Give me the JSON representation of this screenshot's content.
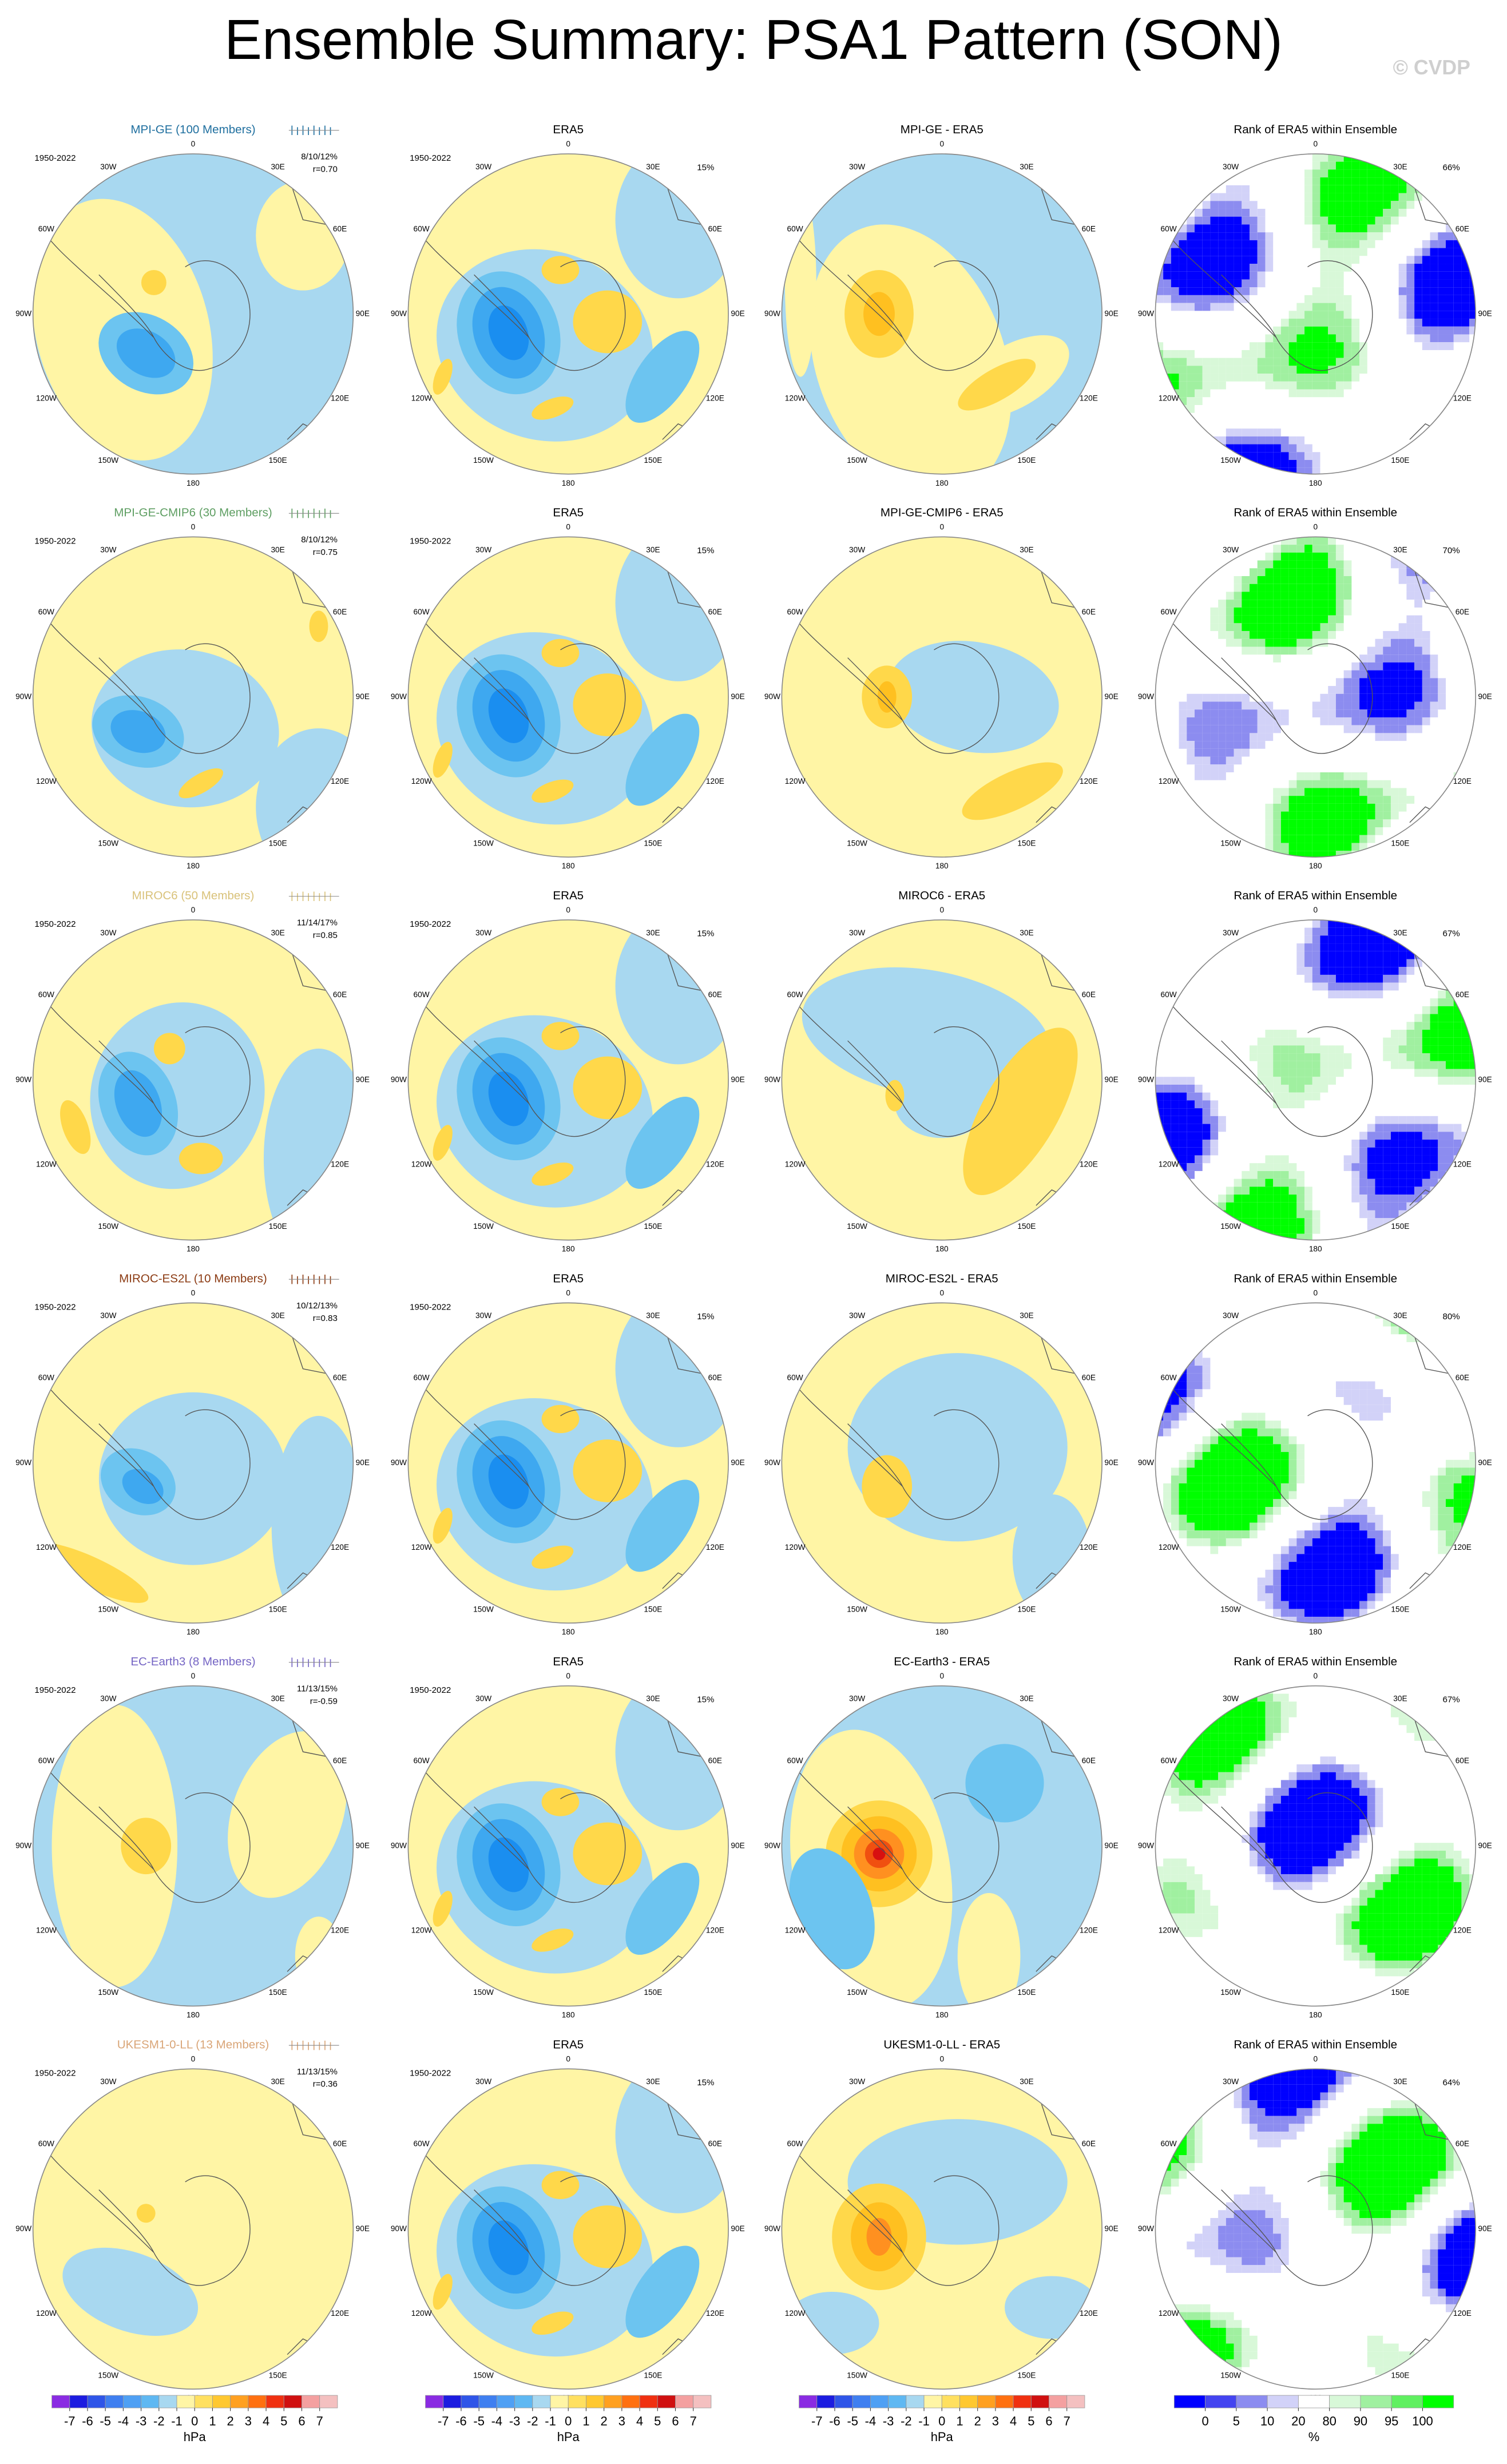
{
  "title": "Ensemble Summary: PSA1 Pattern (SON)",
  "watermark": "© CVDP",
  "period": "1950-2022",
  "era_title": "ERA5",
  "era_pct": "15%",
  "rank_title": "Rank of ERA5 within Ensemble",
  "lon_labels": [
    "0",
    "30E",
    "60E",
    "90E",
    "120E",
    "150E",
    "180",
    "150W",
    "120W",
    "90W",
    "60W",
    "30W"
  ],
  "rows": [
    {
      "model_title": "MPI-GE (100 Members)",
      "model_color": "#1f6f9f",
      "stats": [
        "8/10/12%",
        "r=0.70"
      ],
      "diff_title": "MPI-GE - ERA5",
      "rank_pct": "66%"
    },
    {
      "model_title": "MPI-GE-CMIP6 (30 Members)",
      "model_color": "#5e9e62",
      "stats": [
        "8/10/12%",
        "r=0.75"
      ],
      "diff_title": "MPI-GE-CMIP6 - ERA5",
      "rank_pct": "70%"
    },
    {
      "model_title": "MIROC6 (50 Members)",
      "model_color": "#d9c27a",
      "stats": [
        "11/14/17%",
        "r=0.85"
      ],
      "diff_title": "MIROC6 - ERA5",
      "rank_pct": "67%"
    },
    {
      "model_title": "MIROC-ES2L (10 Members)",
      "model_color": "#8b3a12",
      "stats": [
        "10/12/13%",
        "r=0.83"
      ],
      "diff_title": "MIROC-ES2L - ERA5",
      "rank_pct": "80%"
    },
    {
      "model_title": "EC-Earth3 (8 Members)",
      "model_color": "#7565c4",
      "stats": [
        "11/13/15%",
        "r=-0.59"
      ],
      "diff_title": "EC-Earth3 - ERA5",
      "rank_pct": "67%"
    },
    {
      "model_title": "UKESM1-0-LL (13 Members)",
      "model_color": "#d9a577",
      "stats": [
        "11/13/15%",
        "r=0.36"
      ],
      "diff_title": "UKESM1-0-LL - ERA5",
      "rank_pct": "64%"
    }
  ],
  "colorbar": {
    "ticks": [
      -7,
      -6,
      -5,
      -4,
      -3,
      -2,
      -1,
      0,
      1,
      2,
      3,
      4,
      5,
      6,
      7
    ],
    "unit": "hPa",
    "colors": [
      "#8a2be2",
      "#1c1ce0",
      "#2f55e8",
      "#3f7ff0",
      "#4fa0f4",
      "#5fb8f2",
      "#a8d8f0",
      "#fff5a5",
      "#ffe060",
      "#ffc830",
      "#ffa020",
      "#ff7010",
      "#f03010",
      "#d01010",
      "#f4a0a0",
      "#f4c0c0"
    ]
  },
  "rank_colorbar": {
    "ticks": [
      0,
      5,
      10,
      20,
      80,
      90,
      95,
      100
    ],
    "unit": "%",
    "colors": [
      "#0000ff",
      "#4444f0",
      "#8c8cf0",
      "#d2d2f8",
      "#ffffff",
      "#d8f8d8",
      "#a0f0a0",
      "#60f060",
      "#00ff00"
    ]
  }
}
